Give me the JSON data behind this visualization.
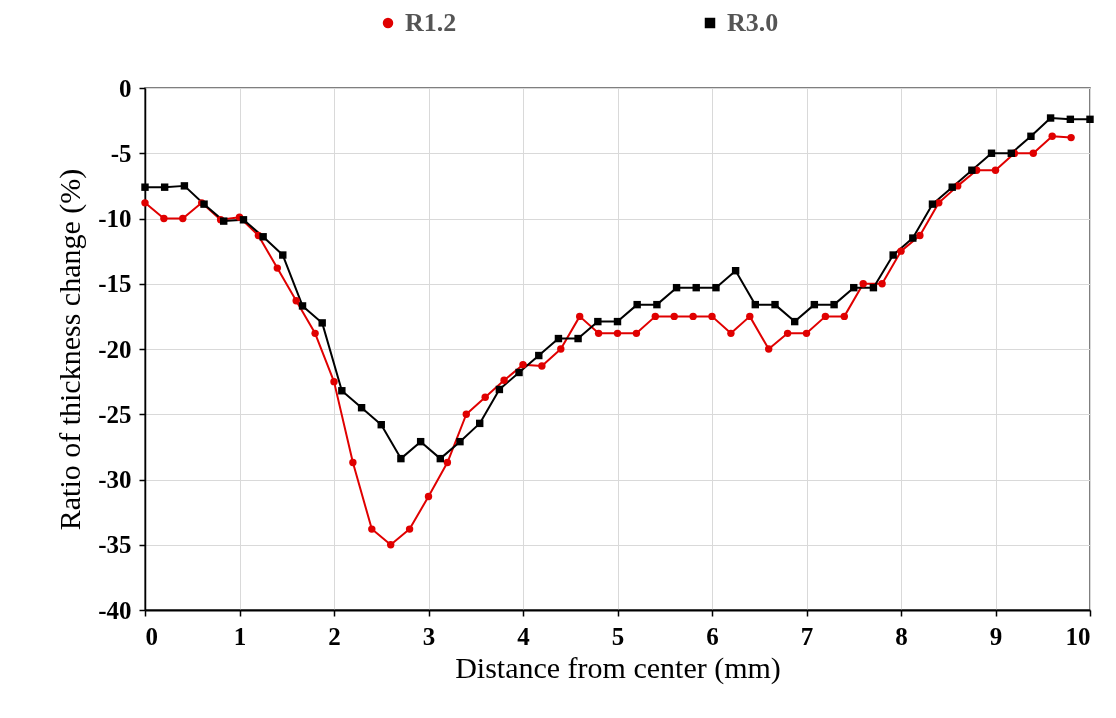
{
  "chart_data": {
    "type": "line",
    "xlabel": "Distance from center (mm)",
    "ylabel": "Ratio of thickness change (%)",
    "xlim": [
      0,
      10
    ],
    "xticks": [
      0,
      1,
      2,
      3,
      4,
      5,
      6,
      7,
      8,
      9,
      10
    ],
    "ylim": [
      -40,
      0
    ],
    "yticks": [
      -40,
      -35,
      -30,
      -25,
      -20,
      -15,
      -10,
      -5,
      0
    ],
    "grid": true,
    "legend": "top",
    "series": [
      {
        "name": "R1.2",
        "color": "#e00000",
        "marker": "circle",
        "x": [
          0,
          0.2,
          0.4,
          0.6,
          0.8,
          1,
          1.2,
          1.4,
          1.6,
          1.8,
          2,
          2.2,
          2.4,
          2.6,
          2.8,
          3,
          3.2,
          3.4,
          3.6,
          3.8,
          4,
          4.2,
          4.4,
          4.6,
          4.8,
          5,
          5.2,
          5.4,
          5.6,
          5.8,
          6,
          6.2,
          6.4,
          6.6,
          6.8,
          7,
          7.2,
          7.4,
          7.6,
          7.8,
          8,
          8.2,
          8.4,
          8.6,
          8.8,
          9,
          9.2,
          9.4,
          9.6,
          9.8
        ],
        "values": [
          -8.8,
          -10,
          -10,
          -8.8,
          -10.1,
          -9.9,
          -11.3,
          -13.8,
          -16.3,
          -18.8,
          -22.5,
          -28.7,
          -33.8,
          -35,
          -33.8,
          -31.3,
          -28.7,
          -25,
          -23.7,
          -22.4,
          -21.2,
          -21.3,
          -20,
          -17.5,
          -18.8,
          -18.8,
          -18.8,
          -17.5,
          -17.5,
          -17.5,
          -17.5,
          -18.8,
          -17.5,
          -20,
          -18.8,
          -18.8,
          -17.5,
          -17.5,
          -15,
          -15,
          -12.5,
          -11.3,
          -8.8,
          -7.5,
          -6.3,
          -6.3,
          -5,
          -5,
          -3.7,
          -3.8
        ]
      },
      {
        "name": "R3.0",
        "color": "#000000",
        "marker": "square",
        "x": [
          0,
          0.208,
          0.417,
          0.625,
          0.833,
          1.042,
          1.25,
          1.458,
          1.667,
          1.875,
          2.083,
          2.292,
          2.5,
          2.708,
          2.917,
          3.125,
          3.333,
          3.542,
          3.75,
          3.958,
          4.167,
          4.375,
          4.583,
          4.792,
          5,
          5.208,
          5.417,
          5.625,
          5.833,
          6.042,
          6.25,
          6.458,
          6.667,
          6.875,
          7.083,
          7.292,
          7.5,
          7.708,
          7.917,
          8.125,
          8.333,
          8.542,
          8.75,
          8.958,
          9.167,
          9.375,
          9.583,
          9.792,
          10
        ],
        "values": [
          -7.6,
          -7.6,
          -7.5,
          -8.9,
          -10.2,
          -10.1,
          -11.4,
          -12.8,
          -16.7,
          -18,
          -23.2,
          -24.5,
          -25.8,
          -28.4,
          -27.1,
          -28.4,
          -27.1,
          -25.7,
          -23.1,
          -21.8,
          -20.5,
          -19.2,
          -19.2,
          -17.9,
          -17.9,
          -16.6,
          -16.6,
          -15.3,
          -15.3,
          -15.3,
          -14,
          -16.6,
          -16.6,
          -17.9,
          -16.6,
          -16.6,
          -15.3,
          -15.3,
          -12.8,
          -11.5,
          -8.9,
          -7.6,
          -6.3,
          -5,
          -5,
          -3.7,
          -2.3,
          -2.4,
          -2.4
        ]
      }
    ]
  }
}
